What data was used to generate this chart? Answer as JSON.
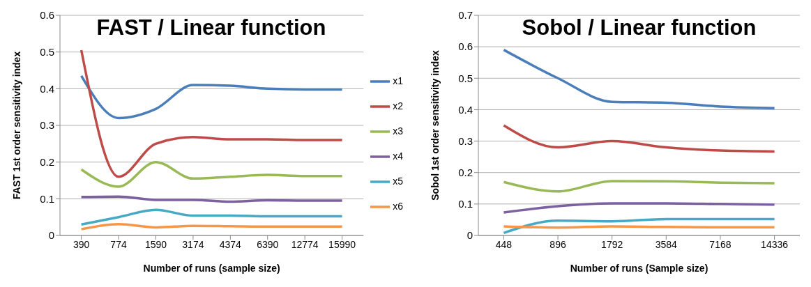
{
  "chart_data": [
    {
      "type": "line",
      "title": "FAST / Linear function",
      "xlabel": "Number of runs (sample size)",
      "ylabel": "FAST 1st order sensitivity index",
      "categories": [
        "390",
        "774",
        "1590",
        "3174",
        "4374",
        "6390",
        "12774",
        "15990"
      ],
      "ylim": [
        0,
        0.6
      ],
      "yticks": [
        0,
        0.1,
        0.2,
        0.3,
        0.4,
        0.5,
        0.6
      ],
      "grid": "y",
      "legend": "right",
      "marker": "none",
      "line_style": "solid",
      "series": [
        {
          "name": "x1",
          "color": "#4a7ebb",
          "values": [
            0.435,
            0.32,
            0.345,
            0.41,
            0.408,
            0.4,
            0.398,
            0.398
          ]
        },
        {
          "name": "x2",
          "color": "#be4b48",
          "values": [
            0.505,
            0.16,
            0.25,
            0.268,
            0.262,
            0.262,
            0.26,
            0.26
          ]
        },
        {
          "name": "x3",
          "color": "#98b954",
          "values": [
            0.18,
            0.133,
            0.2,
            0.155,
            0.16,
            0.165,
            0.162,
            0.162
          ]
        },
        {
          "name": "x4",
          "color": "#7d60a0",
          "values": [
            0.105,
            0.106,
            0.097,
            0.097,
            0.092,
            0.096,
            0.095,
            0.095
          ]
        },
        {
          "name": "x5",
          "color": "#46aac5",
          "values": [
            0.03,
            0.05,
            0.07,
            0.054,
            0.054,
            0.052,
            0.052,
            0.052
          ]
        },
        {
          "name": "x6",
          "color": "#f79646",
          "values": [
            0.017,
            0.031,
            0.022,
            0.026,
            0.025,
            0.024,
            0.024,
            0.024
          ]
        }
      ]
    },
    {
      "type": "line",
      "title": "Sobol / Linear function",
      "xlabel": "Number of runs (Sample size)",
      "ylabel": "Sobol 1st order sensitivity index",
      "categories": [
        "448",
        "896",
        "1792",
        "3584",
        "7168",
        "14336"
      ],
      "ylim": [
        0,
        0.7
      ],
      "yticks": [
        0,
        0.1,
        0.2,
        0.3,
        0.4,
        0.5,
        0.6,
        0.7
      ],
      "grid": "y",
      "marker": "none",
      "line_style": "solid",
      "series": [
        {
          "color": "#4a7ebb",
          "values": [
            0.59,
            0.5,
            0.425,
            0.422,
            0.41,
            0.405
          ]
        },
        {
          "color": "#be4b48",
          "values": [
            0.35,
            0.28,
            0.3,
            0.28,
            0.27,
            0.267
          ]
        },
        {
          "color": "#98b954",
          "values": [
            0.17,
            0.14,
            0.173,
            0.172,
            0.168,
            0.166
          ]
        },
        {
          "color": "#7d60a0",
          "values": [
            0.073,
            0.093,
            0.102,
            0.102,
            0.1,
            0.098
          ]
        },
        {
          "color": "#46aac5",
          "values": [
            0.008,
            0.047,
            0.045,
            0.052,
            0.052,
            0.052
          ]
        },
        {
          "color": "#f79646",
          "values": [
            0.029,
            0.025,
            0.029,
            0.027,
            0.026,
            0.026
          ]
        }
      ]
    }
  ]
}
